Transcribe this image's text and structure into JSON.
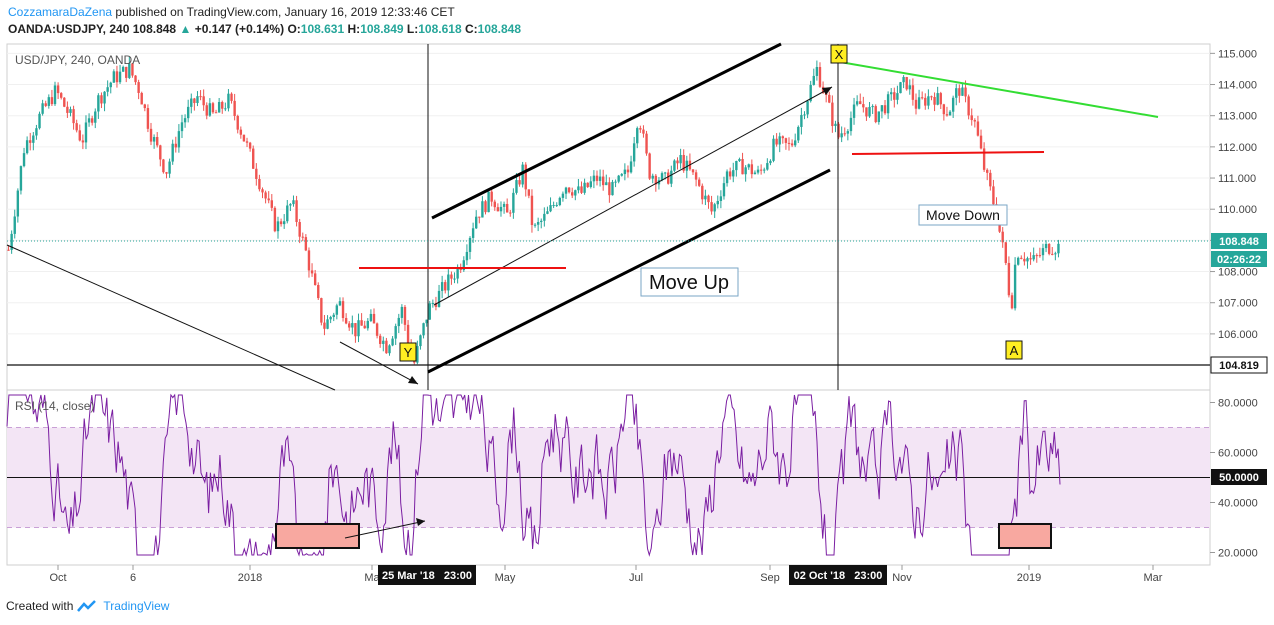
{
  "header": {
    "author": "CozzamaraDaZena",
    "published": "published on TradingView.com, January 16, 2019 12:33:46 CET",
    "symbol": "OANDA:USDJPY, 240",
    "last": "108.848",
    "change_arrow": "▲",
    "change": "+0.147 (+0.14%)",
    "o_label": "O:",
    "o": "108.631",
    "h_label": "H:",
    "h": "108.849",
    "l_label": "L:",
    "l": "108.618",
    "c_label": "C:",
    "c": "108.848"
  },
  "colors": {
    "up": "#26a69a",
    "down": "#ef5350",
    "rsi_line": "#7b1fa2",
    "rsi_band": "#f3e5f5",
    "trend_green": "#33dd33",
    "neckline_red": "#ee1111",
    "price_label": "#26a69a",
    "highlight_box": "#f8a8a0",
    "wave_label_bg": "#ffee22"
  },
  "chart_data": {
    "type": "candlestick",
    "title": "USD/JPY, 240, OANDA",
    "ylim": [
      104.2,
      115.3
    ],
    "price_ticks": [
      "115.000",
      "114.000",
      "113.000",
      "112.000",
      "111.000",
      "110.000",
      "109.000",
      "108.000",
      "107.000",
      "106.000"
    ],
    "x_labels": [
      "Oct",
      "6",
      "2018",
      "Ma",
      "May",
      "Jul",
      "Sep",
      "Nov",
      "2019",
      "Mar"
    ],
    "cursor_labels": [
      "25 Mar '18   23:00",
      "02 Oct '18   23:00"
    ],
    "last_price_label": "108.848",
    "countdown_label": "02:26:22",
    "horizontal_level_label": "104.819",
    "price_path": [
      [
        0,
        108.7
      ],
      [
        0.015,
        112.0
      ],
      [
        0.03,
        113.0
      ],
      [
        0.045,
        113.8
      ],
      [
        0.06,
        112.9
      ],
      [
        0.07,
        112.2
      ],
      [
        0.085,
        113.5
      ],
      [
        0.1,
        114.2
      ],
      [
        0.115,
        114.5
      ],
      [
        0.125,
        113.8
      ],
      [
        0.135,
        112.5
      ],
      [
        0.15,
        111.2
      ],
      [
        0.165,
        112.8
      ],
      [
        0.18,
        113.6
      ],
      [
        0.195,
        113.0
      ],
      [
        0.21,
        113.5
      ],
      [
        0.225,
        112.2
      ],
      [
        0.24,
        110.8
      ],
      [
        0.255,
        109.4
      ],
      [
        0.27,
        110.2
      ],
      [
        0.285,
        108.4
      ],
      [
        0.3,
        106.2
      ],
      [
        0.315,
        107.0
      ],
      [
        0.33,
        106.1
      ],
      [
        0.345,
        106.4
      ],
      [
        0.36,
        105.6
      ],
      [
        0.375,
        106.8
      ],
      [
        0.385,
        104.9
      ],
      [
        0.4,
        106.8
      ],
      [
        0.415,
        107.5
      ],
      [
        0.43,
        108.2
      ],
      [
        0.445,
        109.8
      ],
      [
        0.46,
        110.4
      ],
      [
        0.475,
        109.8
      ],
      [
        0.49,
        111.3
      ],
      [
        0.5,
        109.3
      ],
      [
        0.515,
        109.9
      ],
      [
        0.53,
        110.8
      ],
      [
        0.545,
        110.5
      ],
      [
        0.56,
        111.0
      ],
      [
        0.575,
        110.6
      ],
      [
        0.59,
        111.2
      ],
      [
        0.6,
        113.1
      ],
      [
        0.61,
        111.2
      ],
      [
        0.625,
        110.9
      ],
      [
        0.64,
        111.6
      ],
      [
        0.655,
        110.9
      ],
      [
        0.67,
        109.9
      ],
      [
        0.685,
        111.2
      ],
      [
        0.7,
        111.4
      ],
      [
        0.715,
        111.1
      ],
      [
        0.73,
        112.1
      ],
      [
        0.745,
        112.0
      ],
      [
        0.76,
        113.5
      ],
      [
        0.77,
        114.5
      ],
      [
        0.78,
        113.4
      ],
      [
        0.79,
        112.3
      ],
      [
        0.8,
        112.8
      ],
      [
        0.81,
        113.4
      ],
      [
        0.825,
        113.0
      ],
      [
        0.84,
        113.5
      ],
      [
        0.855,
        114.1
      ],
      [
        0.865,
        113.3
      ],
      [
        0.88,
        113.7
      ],
      [
        0.895,
        113.1
      ],
      [
        0.905,
        113.9
      ],
      [
        0.92,
        112.8
      ],
      [
        0.93,
        111.2
      ],
      [
        0.94,
        110.0
      ],
      [
        0.95,
        108.2
      ],
      [
        0.955,
        106.8
      ],
      [
        0.96,
        108.7
      ],
      [
        0.975,
        108.3
      ],
      [
        0.99,
        108.8
      ]
    ],
    "rsi_ticks": [
      "80.0000",
      "60.0000",
      "40.0000",
      "20.0000"
    ],
    "rsi_title": "RSI (14, close)",
    "rsi_current_label": "50.0000",
    "rsi_band": [
      30,
      70
    ],
    "rsi_ylim": [
      15,
      85
    ]
  },
  "annotations": {
    "move_up": "Move Up",
    "move_down": "Move Down",
    "wave_x": "X",
    "wave_y": "Y",
    "wave_a": "A"
  },
  "footer": {
    "created_with": "Created with",
    "brand": "TradingView"
  }
}
